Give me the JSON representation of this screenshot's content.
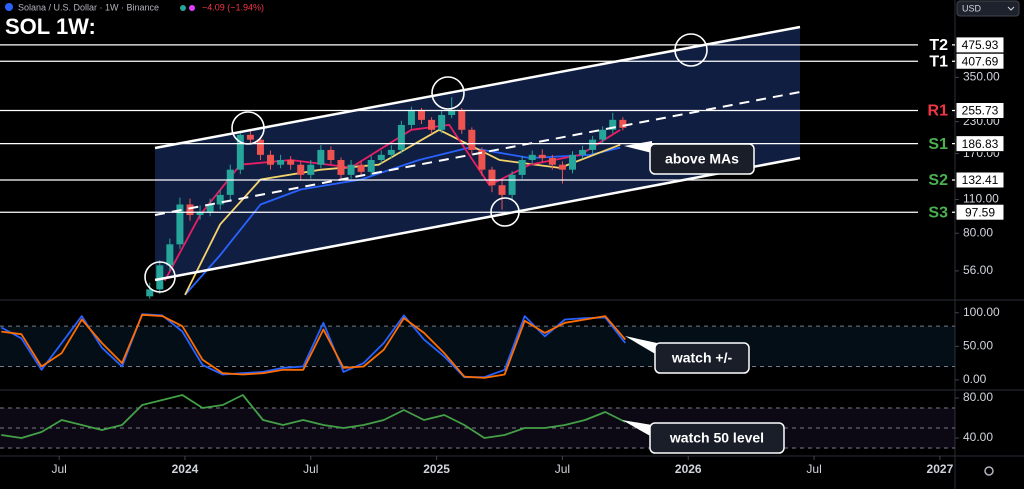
{
  "header": {
    "symbol": "Solana / U.S. Dollar · 1W · Binance",
    "change": "−4.09 (−1.94%)",
    "currency": "USD"
  },
  "chart_data": [
    {
      "type": "candlestick",
      "title": "SOL 1W:",
      "log_scale": true,
      "xlim": [
        2023.265,
        2027.06
      ],
      "xticks": [
        {
          "value": 2023.5,
          "label": "Jul"
        },
        2024,
        {
          "value": 2024.5,
          "label": "Jul"
        },
        2025,
        {
          "value": 2025.5,
          "label": "Jul"
        },
        2026,
        {
          "value": 2026.5,
          "label": "Jul"
        },
        2027
      ],
      "ylim": [
        42.5,
        728
      ],
      "yticks": [
        {
          "value": 350,
          "label": "350.00"
        },
        {
          "value": 230,
          "label": "230.00"
        },
        {
          "value": 170,
          "label": "170.00"
        },
        {
          "value": 110,
          "label": "110.00"
        },
        {
          "value": 80,
          "label": "80.00"
        },
        {
          "value": 56,
          "label": "56.00"
        }
      ],
      "up_color": "#26a69a",
      "down_color": "#ef5350",
      "x": [
        2023.86,
        2023.9,
        2023.94,
        2023.98,
        2024.02,
        2024.06,
        2024.1,
        2024.14,
        2024.18,
        2024.22,
        2024.26,
        2024.3,
        2024.34,
        2024.38,
        2024.42,
        2024.46,
        2024.5,
        2024.54,
        2024.58,
        2024.62,
        2024.66,
        2024.7,
        2024.74,
        2024.78,
        2024.82,
        2024.86,
        2024.9,
        2024.94,
        2024.98,
        2025.02,
        2025.06,
        2025.1,
        2025.14,
        2025.18,
        2025.22,
        2025.26,
        2025.3,
        2025.34,
        2025.38,
        2025.42,
        2025.46,
        2025.5,
        2025.54,
        2025.58,
        2025.62,
        2025.66,
        2025.7,
        2025.74
      ],
      "open": [
        44,
        47,
        59,
        72,
        105,
        95,
        98,
        105,
        115,
        146,
        203,
        194,
        168,
        153,
        160,
        153,
        139,
        153,
        176,
        160,
        139,
        153,
        143,
        160,
        168,
        176,
        223,
        257,
        234,
        213,
        245,
        257,
        213,
        176,
        146,
        126,
        115,
        139,
        160,
        168,
        163,
        153,
        146,
        168,
        176,
        194,
        213,
        234
      ],
      "high": [
        50,
        62,
        76,
        112,
        111,
        104,
        111,
        121,
        153,
        211,
        215,
        200,
        175,
        168,
        166,
        158,
        160,
        184,
        182,
        164,
        160,
        158,
        167,
        175,
        184,
        232,
        265,
        262,
        240,
        255,
        290,
        262,
        218,
        180,
        150,
        132,
        144,
        166,
        175,
        177,
        168,
        158,
        174,
        183,
        201,
        220,
        250,
        240
      ],
      "low": [
        43,
        45,
        56,
        69,
        90,
        91,
        94,
        100,
        110,
        140,
        185,
        160,
        146,
        148,
        146,
        133,
        134,
        148,
        154,
        133,
        134,
        137,
        138,
        155,
        162,
        170,
        215,
        225,
        205,
        206,
        238,
        205,
        168,
        138,
        118,
        100,
        110,
        134,
        154,
        157,
        146,
        128,
        141,
        162,
        170,
        188,
        206,
        212
      ],
      "close": [
        47,
        59,
        72,
        105,
        95,
        98,
        105,
        115,
        146,
        203,
        194,
        168,
        153,
        160,
        153,
        139,
        153,
        176,
        160,
        139,
        153,
        143,
        160,
        168,
        176,
        223,
        257,
        234,
        213,
        245,
        257,
        213,
        176,
        146,
        126,
        115,
        139,
        160,
        168,
        163,
        153,
        146,
        168,
        176,
        194,
        213,
        234,
        217
      ],
      "moving_averages": [
        {
          "color": "#2962ff",
          "x": [
            2024.0,
            2024.14,
            2024.3,
            2024.46,
            2024.7,
            2024.93,
            2025.13,
            2025.37,
            2025.61,
            2025.73
          ],
          "values": [
            44.6,
            65,
            105,
            121,
            133,
            160,
            180,
            163,
            168,
            180
          ]
        },
        {
          "color": "#f5d36b",
          "x": [
            2024.0,
            2024.14,
            2024.3,
            2024.54,
            2024.77,
            2025.01,
            2025.25,
            2025.49,
            2025.73
          ],
          "values": [
            44.6,
            87,
            133,
            146,
            153,
            213,
            160,
            148.5,
            185
          ]
        },
        {
          "color": "#e91e63",
          "x": [
            2023.92,
            2024.06,
            2024.22,
            2024.42,
            2024.66,
            2024.9,
            2025.05,
            2025.21,
            2025.37,
            2025.57,
            2025.73
          ],
          "values": [
            51,
            95,
            153,
            160,
            149,
            213,
            223,
            126,
            153,
            168,
            213
          ]
        }
      ],
      "levels": [
        {
          "label": "T2",
          "value": 475.93,
          "color": "#ffffff"
        },
        {
          "label": "T1",
          "value": 407.69,
          "color": "#ffffff"
        },
        {
          "label": "R1",
          "value": 255.73,
          "color": "#f23645"
        },
        {
          "label": "S1",
          "value": 186.83,
          "color": "#4caf50"
        },
        {
          "label": "S2",
          "value": 132.41,
          "color": "#4caf50"
        },
        {
          "label": "S3",
          "value": 97.59,
          "color": "#4caf50"
        }
      ],
      "annotations": [
        "above MAs"
      ]
    },
    {
      "type": "line",
      "xlim": [
        2023.265,
        2027.06
      ],
      "ylim": [
        -15,
        116
      ],
      "yticks": [
        {
          "value": 100,
          "label": "100.00"
        },
        {
          "value": 50,
          "label": "50.00"
        },
        {
          "value": 0,
          "label": "0.00"
        }
      ],
      "bands": [
        20,
        80
      ],
      "band_color": "#1e88e5",
      "x": [
        2023.27,
        2023.35,
        2023.43,
        2023.51,
        2023.59,
        2023.67,
        2023.75,
        2023.83,
        2023.91,
        2023.99,
        2024.07,
        2024.15,
        2024.23,
        2024.31,
        2024.39,
        2024.47,
        2024.55,
        2024.63,
        2024.71,
        2024.79,
        2024.87,
        2024.95,
        2025.03,
        2025.11,
        2025.19,
        2025.27,
        2025.35,
        2025.43,
        2025.51,
        2025.59,
        2025.67,
        2025.75
      ],
      "series": [
        {
          "color": "#2962ff",
          "values": [
            78,
            62,
            15,
            55,
            95,
            48,
            20,
            98,
            96,
            72,
            22,
            8,
            10,
            12,
            18,
            20,
            85,
            12,
            25,
            55,
            96,
            60,
            35,
            4,
            4,
            15,
            95,
            65,
            90,
            92,
            93,
            55
          ]
        },
        {
          "color": "#ff6d00",
          "values": [
            72,
            68,
            20,
            40,
            90,
            55,
            25,
            97,
            95,
            80,
            30,
            10,
            8,
            10,
            15,
            15,
            75,
            18,
            20,
            45,
            92,
            70,
            40,
            5,
            3,
            8,
            88,
            70,
            85,
            90,
            95,
            60
          ]
        }
      ],
      "annotations": [
        "watch +/-"
      ]
    },
    {
      "type": "line",
      "xlim": [
        2023.265,
        2027.06
      ],
      "ylim": [
        23,
        86
      ],
      "yticks": [
        {
          "value": 80,
          "label": "80.00"
        },
        {
          "value": 40,
          "label": "40.00"
        }
      ],
      "bands": [
        30,
        50,
        70
      ],
      "band_color": "#7e57c2",
      "x": [
        2023.27,
        2023.35,
        2023.43,
        2023.51,
        2023.59,
        2023.67,
        2023.75,
        2023.83,
        2023.91,
        2023.99,
        2024.07,
        2024.15,
        2024.23,
        2024.31,
        2024.39,
        2024.47,
        2024.55,
        2024.63,
        2024.71,
        2024.79,
        2024.87,
        2024.95,
        2025.03,
        2025.11,
        2025.19,
        2025.27,
        2025.35,
        2025.43,
        2025.51,
        2025.59,
        2025.67,
        2025.75
      ],
      "series": [
        {
          "color": "#43a047",
          "values": [
            43,
            40,
            46,
            58,
            53,
            48,
            53,
            73,
            78,
            83,
            70,
            73,
            83,
            58,
            53,
            58,
            53,
            50,
            53,
            58,
            68,
            58,
            63,
            53,
            40,
            43,
            50,
            50,
            53,
            58,
            66,
            56
          ]
        }
      ],
      "annotations": [
        "watch 50 level"
      ]
    }
  ]
}
